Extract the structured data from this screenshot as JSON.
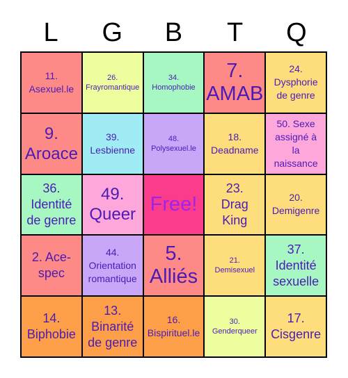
{
  "header": [
    "L",
    "G",
    "B",
    "T",
    "Q"
  ],
  "colors": {
    "salmon": "#fd8a86",
    "lime": "#eefe9f",
    "mint": "#a6f7c2",
    "yellow": "#fedd7c",
    "sky": "#a0ecf5",
    "lavender": "#c8a6f8",
    "pink": "#fea7db",
    "hotpink": "#fb3c8d",
    "orange": "#fd9f48",
    "text": "#4b1bb5",
    "free_text": "#a023ea"
  },
  "cells": [
    {
      "text": "11.\nAsexuel.le",
      "color": "salmon",
      "size": "s-sm"
    },
    {
      "text": "26.\nFrayromantique",
      "color": "lime",
      "size": "s-xs"
    },
    {
      "text": "34.\nHomophobie",
      "color": "mint",
      "size": "s-xs"
    },
    {
      "text": "7.\nAMAB",
      "color": "salmon",
      "size": "s-xl"
    },
    {
      "text": "24.\nDysphorie\nde genre",
      "color": "yellow",
      "size": "s-sm"
    },
    {
      "text": "9.\nAroace",
      "color": "salmon",
      "size": "s-lg"
    },
    {
      "text": "39.\nLesbienne",
      "color": "sky",
      "size": "s-sm"
    },
    {
      "text": "48.\nPolysexuel.le",
      "color": "lavender",
      "size": "s-xs"
    },
    {
      "text": "18.\nDeadname",
      "color": "yellow",
      "size": "s-sm"
    },
    {
      "text": "50. Sexe\nassigné à\nla\nnaissance",
      "color": "pink",
      "size": "s-sm"
    },
    {
      "text": "36.\nIdentité\nde genre",
      "color": "mint",
      "size": "s-md"
    },
    {
      "text": "49.\nQueer",
      "color": "pink",
      "size": "s-lg"
    },
    {
      "text": "Free!",
      "color": "hotpink",
      "size": "s-xl",
      "free": true
    },
    {
      "text": "23.\nDrag\nKing",
      "color": "yellow",
      "size": "s-md"
    },
    {
      "text": "20.\nDemigenre",
      "color": "yellow",
      "size": "s-sm"
    },
    {
      "text": "2. Ace-\nspec",
      "color": "salmon",
      "size": "s-md"
    },
    {
      "text": "44.\nOrientation\nromantique",
      "color": "lavender",
      "size": "s-sm"
    },
    {
      "text": "5.\nAlliés",
      "color": "salmon",
      "size": "s-xl"
    },
    {
      "text": "21.\nDemisexuel",
      "color": "yellow",
      "size": "s-xs"
    },
    {
      "text": "37.\nIdentité\nsexuelle",
      "color": "mint",
      "size": "s-md"
    },
    {
      "text": "14.\nBiphobie",
      "color": "orange",
      "size": "s-md"
    },
    {
      "text": "13.\nBinarité\nde genre",
      "color": "orange",
      "size": "s-md"
    },
    {
      "text": "16.\nBispirituel.le",
      "color": "orange",
      "size": "s-sm"
    },
    {
      "text": "30.\nGenderqueer",
      "color": "lime",
      "size": "s-xs"
    },
    {
      "text": "17.\nCisgenre",
      "color": "yellow",
      "size": "s-md"
    }
  ]
}
